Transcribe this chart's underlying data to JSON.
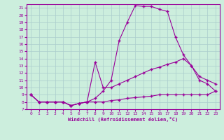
{
  "xlabel": "Windchill (Refroidissement éolien,°C)",
  "background_color": "#cceedd",
  "line_color": "#990099",
  "grid_color": "#aacccc",
  "xlim": [
    -0.5,
    23.5
  ],
  "ylim": [
    7,
    21.5
  ],
  "yticks": [
    7,
    8,
    9,
    10,
    11,
    12,
    13,
    14,
    15,
    16,
    17,
    18,
    19,
    20,
    21
  ],
  "xticks": [
    0,
    1,
    2,
    3,
    4,
    5,
    6,
    7,
    8,
    9,
    10,
    11,
    12,
    13,
    14,
    15,
    16,
    17,
    18,
    19,
    20,
    21,
    22,
    23
  ],
  "series": [
    {
      "x": [
        0,
        1,
        2,
        3,
        4,
        5,
        6,
        7,
        8,
        9,
        10,
        11,
        12,
        13,
        14,
        15,
        16,
        17,
        18,
        19,
        20,
        21,
        22,
        23
      ],
      "y": [
        9.0,
        8.0,
        8.0,
        8.0,
        8.0,
        7.5,
        7.8,
        8.0,
        8.5,
        9.5,
        11.0,
        16.5,
        19.0,
        21.3,
        21.2,
        21.2,
        20.8,
        20.5,
        17.0,
        14.5,
        13.0,
        11.0,
        10.5,
        9.5
      ]
    },
    {
      "x": [
        0,
        1,
        2,
        3,
        4,
        5,
        6,
        7,
        8,
        9,
        10,
        11,
        12,
        13,
        14,
        15,
        16,
        17,
        18,
        19,
        20,
        21,
        22,
        23
      ],
      "y": [
        9.0,
        8.0,
        8.0,
        8.0,
        8.0,
        7.5,
        7.8,
        8.0,
        13.5,
        10.0,
        10.0,
        10.5,
        11.0,
        11.5,
        12.0,
        12.5,
        12.8,
        13.2,
        13.5,
        14.0,
        13.0,
        11.5,
        11.0,
        10.5
      ]
    },
    {
      "x": [
        0,
        1,
        2,
        3,
        4,
        5,
        6,
        7,
        8,
        9,
        10,
        11,
        12,
        13,
        14,
        15,
        16,
        17,
        18,
        19,
        20,
        21,
        22,
        23
      ],
      "y": [
        9.0,
        8.0,
        8.0,
        8.0,
        8.0,
        7.5,
        7.8,
        8.0,
        8.0,
        8.0,
        8.2,
        8.3,
        8.5,
        8.6,
        8.7,
        8.8,
        9.0,
        9.0,
        9.0,
        9.0,
        9.0,
        9.0,
        9.0,
        9.5
      ]
    }
  ]
}
